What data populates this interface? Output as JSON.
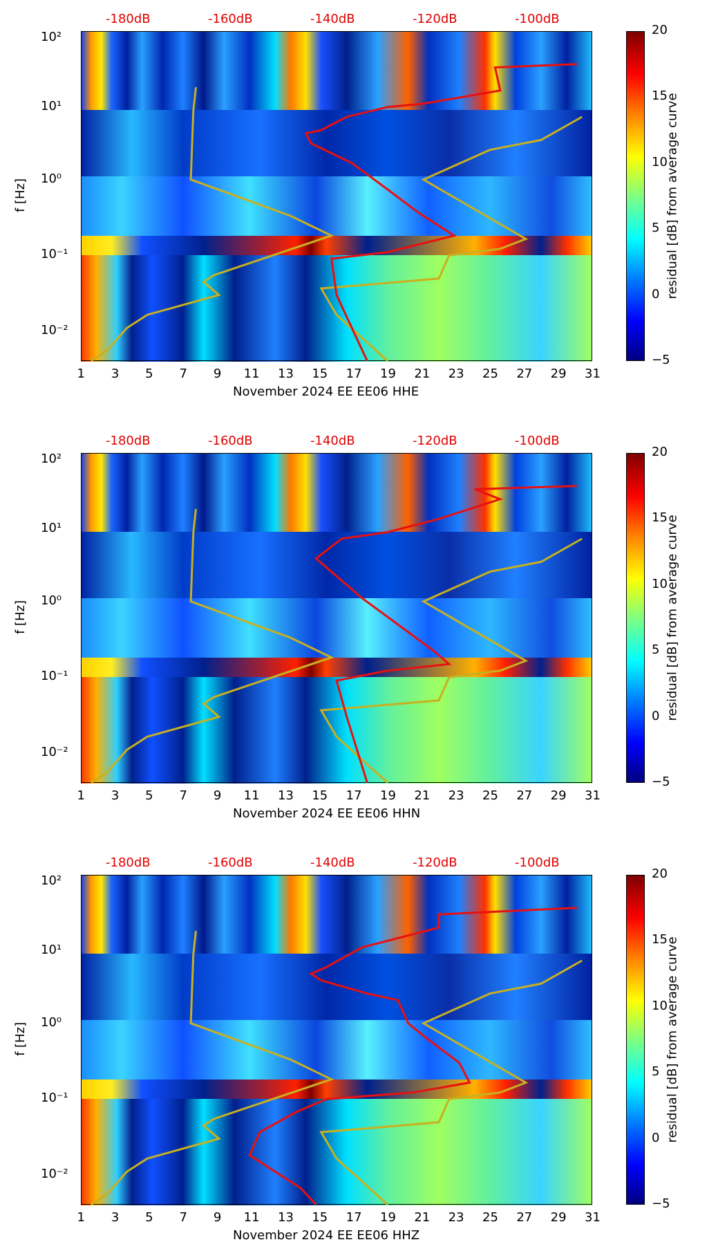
{
  "chart_data": [
    {
      "type": "heatmap",
      "xlabel": "November 2024 EE EE06  HHE",
      "ylabel": "f [Hz]",
      "x_ticks": [
        "1",
        "3",
        "5",
        "7",
        "9",
        "11",
        "13",
        "15",
        "17",
        "19",
        "21",
        "23",
        "25",
        "27",
        "29",
        "31"
      ],
      "y_ticks": [
        "10⁻²",
        "10⁻¹",
        "10⁰",
        "10¹",
        "10²"
      ],
      "y_scale": "log",
      "xlim": [
        1,
        31
      ],
      "ylim": [
        0.005,
        130
      ],
      "top_axis_ticks": [
        "-180dB",
        "-160dB",
        "-140dB",
        "-120dB",
        "-100dB"
      ],
      "colorbar": {
        "label": "residual [dB] from average curve",
        "ticks": [
          "−5",
          "0",
          "5",
          "10",
          "15",
          "20"
        ],
        "range": [
          -5,
          20
        ]
      }
    },
    {
      "type": "heatmap",
      "xlabel": "November 2024 EE EE06  HHN",
      "ylabel": "f [Hz]",
      "x_ticks": [
        "1",
        "3",
        "5",
        "7",
        "9",
        "11",
        "13",
        "15",
        "17",
        "19",
        "21",
        "23",
        "25",
        "27",
        "29",
        "31"
      ],
      "y_ticks": [
        "10⁻²",
        "10⁻¹",
        "10⁰",
        "10¹",
        "10²"
      ],
      "y_scale": "log",
      "xlim": [
        1,
        31
      ],
      "ylim": [
        0.005,
        130
      ],
      "top_axis_ticks": [
        "-180dB",
        "-160dB",
        "-140dB",
        "-120dB",
        "-100dB"
      ],
      "colorbar": {
        "label": "residual [dB] from average curve",
        "ticks": [
          "−5",
          "0",
          "5",
          "10",
          "15",
          "20"
        ],
        "range": [
          -5,
          20
        ]
      }
    },
    {
      "type": "heatmap",
      "xlabel": "November 2024 EE EE06  HHZ",
      "ylabel": "f [Hz]",
      "x_ticks": [
        "1",
        "3",
        "5",
        "7",
        "9",
        "11",
        "13",
        "15",
        "17",
        "19",
        "21",
        "23",
        "25",
        "27",
        "29",
        "31"
      ],
      "y_ticks": [
        "10⁻²",
        "10⁻¹",
        "10⁰",
        "10¹",
        "10²"
      ],
      "y_scale": "log",
      "xlim": [
        1,
        31
      ],
      "ylim": [
        0.005,
        130
      ],
      "top_axis_ticks": [
        "-180dB",
        "-160dB",
        "-140dB",
        "-120dB",
        "-100dB"
      ],
      "colorbar": {
        "label": "residual [dB] from average curve",
        "ticks": [
          "−5",
          "0",
          "5",
          "10",
          "15",
          "20"
        ],
        "range": [
          -5,
          20
        ]
      }
    }
  ],
  "colors": {
    "power_curve": "#e81010",
    "noise_model": "#c8b020",
    "db_labels": "#e00000"
  }
}
